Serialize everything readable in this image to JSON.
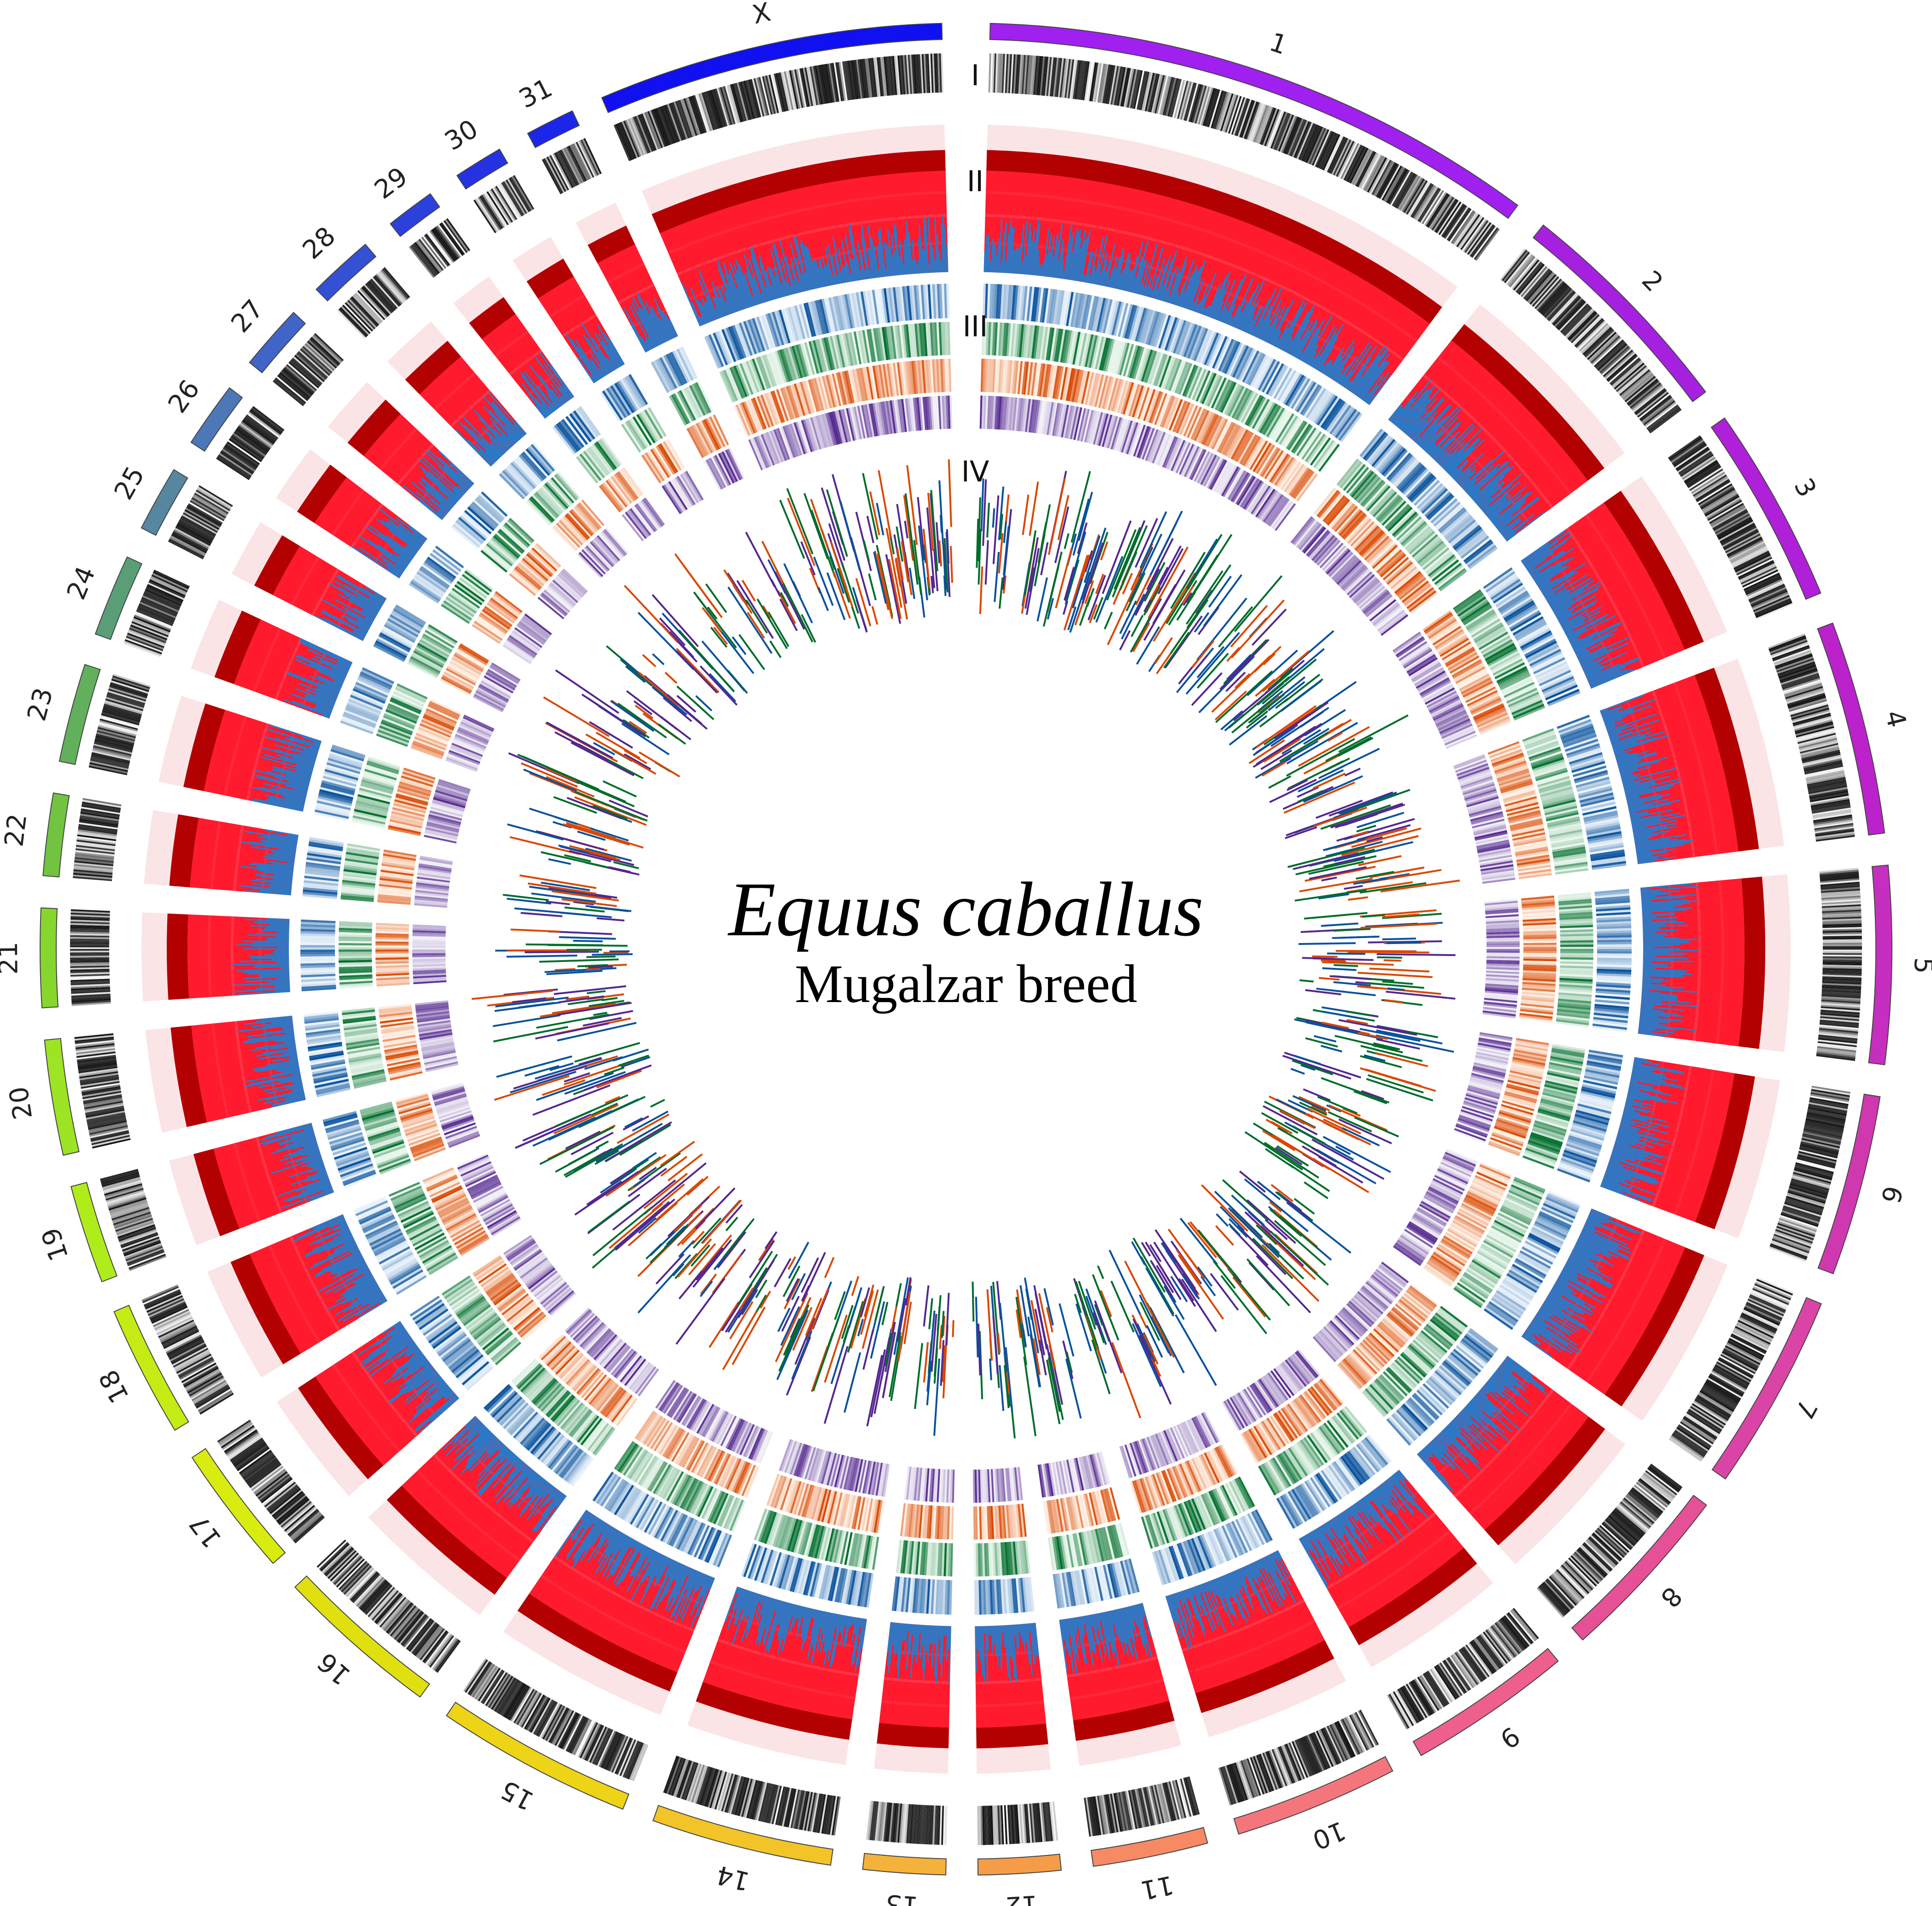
{
  "title": {
    "species": "Equus caballus",
    "breed": "Mugalzar breed"
  },
  "track_labels": [
    "I",
    "II",
    "III",
    "IV"
  ],
  "chromosomes": [
    {
      "label": "1",
      "color": "#a020f0"
    },
    {
      "label": "2",
      "color": "#a620e0"
    },
    {
      "label": "3",
      "color": "#b020d8"
    },
    {
      "label": "4",
      "color": "#bb22cc"
    },
    {
      "label": "5",
      "color": "#c62ec0"
    },
    {
      "label": "6",
      "color": "#d038b0"
    },
    {
      "label": "7",
      "color": "#da44a6"
    },
    {
      "label": "8",
      "color": "#e65096"
    },
    {
      "label": "9",
      "color": "#ef5f8c"
    },
    {
      "label": "10",
      "color": "#f4767c"
    },
    {
      "label": "11",
      "color": "#f68a64"
    },
    {
      "label": "12",
      "color": "#f59c48"
    },
    {
      "label": "13",
      "color": "#f5b23a"
    },
    {
      "label": "14",
      "color": "#f2c428"
    },
    {
      "label": "15",
      "color": "#eed416"
    },
    {
      "label": "16",
      "color": "#e0e010"
    },
    {
      "label": "17",
      "color": "#d8ec10"
    },
    {
      "label": "18",
      "color": "#c4ec14"
    },
    {
      "label": "19",
      "color": "#b0ec1c"
    },
    {
      "label": "20",
      "color": "#9ce424"
    },
    {
      "label": "21",
      "color": "#86d62e"
    },
    {
      "label": "22",
      "color": "#72c440"
    },
    {
      "label": "23",
      "color": "#62b05c"
    },
    {
      "label": "24",
      "color": "#5a9e78"
    },
    {
      "label": "25",
      "color": "#5686a0"
    },
    {
      "label": "26",
      "color": "#4c78b8"
    },
    {
      "label": "27",
      "color": "#4064c8"
    },
    {
      "label": "28",
      "color": "#3450d4"
    },
    {
      "label": "29",
      "color": "#2c40dc"
    },
    {
      "label": "30",
      "color": "#2432e2"
    },
    {
      "label": "31",
      "color": "#1c26ea"
    },
    {
      "label": "X",
      "color": "#1010f0"
    }
  ],
  "colors": {
    "density_fill": "#ff1a2e",
    "density_edge": "#b30000",
    "blue_overlay": "#1f7fd0",
    "heat_blue": "#08519c",
    "heat_green": "#006d2c",
    "heat_orange": "#d94801",
    "heat_purple": "#54278f"
  }
}
